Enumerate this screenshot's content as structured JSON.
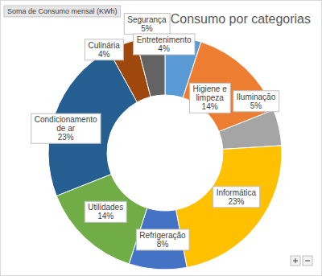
{
  "chart_data": {
    "type": "donut",
    "title": "Consumo por categorias",
    "annotations": [
      "Soma de Consumo mensal (KWh)"
    ],
    "categories": [
      "Segurança",
      "Higiene e limpeza",
      "Iluminação",
      "Informática",
      "Refrigeração",
      "Utilidades",
      "Condicionamento de ar",
      "Culinária",
      "Entretenimento"
    ],
    "values": [
      5,
      14,
      5,
      23,
      8,
      14,
      23,
      4,
      4
    ],
    "value_labels": [
      "5%",
      "14%",
      "5%",
      "23%",
      "8%",
      "14%",
      "23%",
      "4%",
      "4%"
    ],
    "colors": [
      "#5b9bd5",
      "#ed7d31",
      "#a5a5a5",
      "#ffc000",
      "#4472c4",
      "#70ad47",
      "#255e91",
      "#9e480e",
      "#636363"
    ],
    "data_labels": true
  }
}
